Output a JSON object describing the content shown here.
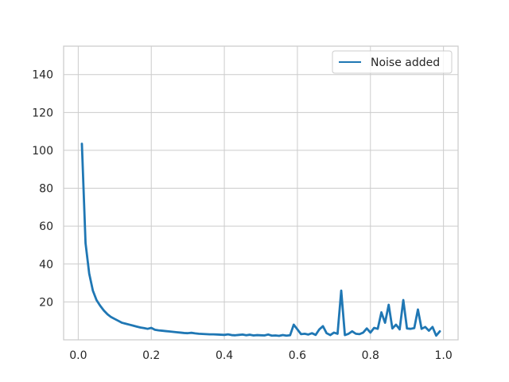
{
  "chart_data": {
    "type": "line",
    "title": "",
    "xlabel": "",
    "ylabel": "",
    "xlim": [
      -0.04,
      1.04
    ],
    "ylim": [
      0,
      155
    ],
    "xticks": [
      0.0,
      0.2,
      0.4,
      0.6,
      0.8,
      1.0
    ],
    "xtick_labels": [
      "0.0",
      "0.2",
      "0.4",
      "0.6",
      "0.8",
      "1.0"
    ],
    "yticks": [
      20,
      40,
      60,
      80,
      100,
      120,
      140
    ],
    "ytick_labels": [
      "20",
      "40",
      "60",
      "80",
      "100",
      "120",
      "140"
    ],
    "grid": true,
    "legend_position": "top-right",
    "series": [
      {
        "name": "Noise added",
        "color": "#1f77b4",
        "x": [
          0.01,
          0.02,
          0.03,
          0.04,
          0.05,
          0.06,
          0.07,
          0.08,
          0.09,
          0.1,
          0.11,
          0.12,
          0.13,
          0.14,
          0.15,
          0.16,
          0.17,
          0.18,
          0.19,
          0.2,
          0.21,
          0.22,
          0.23,
          0.24,
          0.25,
          0.26,
          0.27,
          0.28,
          0.29,
          0.3,
          0.31,
          0.32,
          0.33,
          0.34,
          0.35,
          0.36,
          0.37,
          0.38,
          0.39,
          0.4,
          0.41,
          0.42,
          0.43,
          0.44,
          0.45,
          0.46,
          0.47,
          0.48,
          0.49,
          0.5,
          0.51,
          0.52,
          0.53,
          0.54,
          0.55,
          0.56,
          0.57,
          0.58,
          0.59,
          0.6,
          0.61,
          0.62,
          0.63,
          0.64,
          0.65,
          0.66,
          0.67,
          0.68,
          0.69,
          0.7,
          0.71,
          0.72,
          0.73,
          0.74,
          0.75,
          0.76,
          0.77,
          0.78,
          0.79,
          0.8,
          0.81,
          0.82,
          0.83,
          0.84,
          0.85,
          0.86,
          0.87,
          0.88,
          0.89,
          0.9,
          0.91,
          0.92,
          0.93,
          0.94,
          0.95,
          0.96,
          0.97,
          0.98,
          0.99
        ],
        "y": [
          103.5,
          51,
          35,
          26,
          21,
          18,
          15.5,
          13.5,
          12,
          11,
          10,
          9,
          8.5,
          8,
          7.5,
          7,
          6.5,
          6.2,
          5.8,
          6.3,
          5.3,
          5,
          4.8,
          4.6,
          4.4,
          4.2,
          4.0,
          3.8,
          3.6,
          3.5,
          3.7,
          3.4,
          3.2,
          3.1,
          3.0,
          2.9,
          2.9,
          2.8,
          2.7,
          2.6,
          2.9,
          2.5,
          2.4,
          2.6,
          2.8,
          2.4,
          2.7,
          2.3,
          2.5,
          2.4,
          2.3,
          2.8,
          2.2,
          2.3,
          2.1,
          2.5,
          2.2,
          2.4,
          8,
          5.5,
          3,
          3.2,
          2.8,
          3.5,
          2.6,
          5.5,
          7.2,
          3.5,
          2.5,
          3.8,
          3.2,
          26,
          2.5,
          3.2,
          4.5,
          3.2,
          3.0,
          3.8,
          6.0,
          3.8,
          6.3,
          5.8,
          14.5,
          9,
          18.5,
          6,
          8,
          5.5,
          21,
          6,
          5.8,
          6.2,
          16,
          5.8,
          6.8,
          4.8,
          6.8,
          2.2,
          4.5
        ]
      }
    ]
  }
}
